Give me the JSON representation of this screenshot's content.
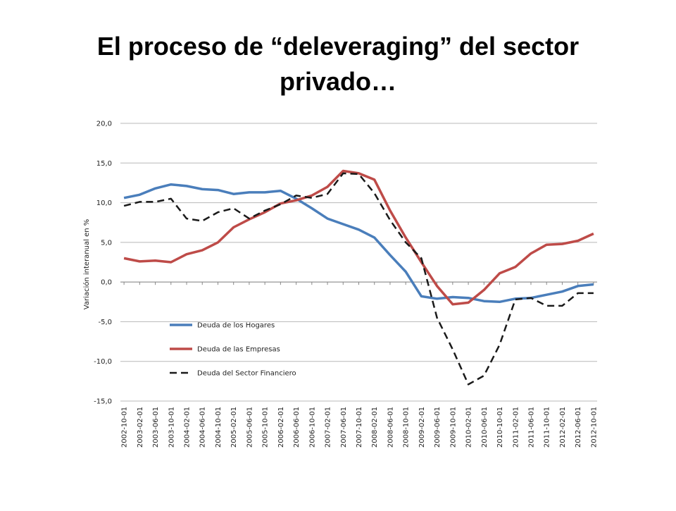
{
  "chart_data": {
    "type": "line",
    "title": "El proceso de “deleveraging” del sector privado…",
    "y_label": "Variación interanual en %",
    "categories": [
      "2002-10-01",
      "2003-02-01",
      "2003-06-01",
      "2003-10-01",
      "2004-02-01",
      "2004-06-01",
      "2004-10-01",
      "2005-02-01",
      "2005-06-01",
      "2005-10-01",
      "2006-02-01",
      "2006-06-01",
      "2006-10-01",
      "2007-02-01",
      "2007-06-01",
      "2007-10-01",
      "2008-02-01",
      "2008-06-01",
      "2008-10-01",
      "2009-02-01",
      "2009-06-01",
      "2009-10-01",
      "2010-02-01",
      "2010-06-01",
      "2010-10-01",
      "2011-02-01",
      "2011-06-01",
      "2011-10-01",
      "2012-02-01",
      "2012-06-01",
      "2012-10-01"
    ],
    "series": [
      {
        "name": "Deuda de los Hogares",
        "color": "#4a7ebb",
        "dash": false,
        "values": [
          10.6,
          11.0,
          11.8,
          12.3,
          12.1,
          11.7,
          11.6,
          11.1,
          11.3,
          11.3,
          11.5,
          10.5,
          9.3,
          8.0,
          7.3,
          6.6,
          5.6,
          3.4,
          1.3,
          -1.8,
          -2.1,
          -1.9,
          -2.0,
          -2.4,
          -2.5,
          -2.1,
          -2.0,
          -1.6,
          -1.2,
          -0.5,
          -0.3
        ]
      },
      {
        "name": "Deuda de las Empresas",
        "color": "#be4b48",
        "dash": false,
        "values": [
          3.0,
          2.6,
          2.7,
          2.5,
          3.5,
          4.0,
          5.0,
          6.9,
          7.9,
          8.8,
          9.9,
          10.3,
          10.9,
          12.0,
          14.0,
          13.7,
          12.9,
          9.0,
          5.6,
          2.5,
          -0.5,
          -2.8,
          -2.6,
          -1.0,
          1.1,
          1.9,
          3.6,
          4.7,
          4.8,
          5.2,
          6.1
        ]
      },
      {
        "name": "Deuda del Sector Financiero",
        "color": "#1a1a1a",
        "dash": true,
        "values": [
          9.6,
          10.1,
          10.1,
          10.5,
          8.0,
          7.7,
          8.8,
          9.3,
          8.0,
          9.0,
          9.8,
          10.9,
          10.6,
          11.1,
          13.7,
          13.6,
          11.2,
          7.8,
          5.0,
          3.0,
          -4.5,
          -8.5,
          -12.9,
          -11.8,
          -7.9,
          -2.2,
          -2.0,
          -3.0,
          -3.0,
          -1.4,
          -1.4
        ]
      }
    ],
    "ylim": [
      -15,
      20
    ],
    "yticks": [
      {
        "value": -15,
        "label": "-15,0"
      },
      {
        "value": -10,
        "label": "-10,0"
      },
      {
        "value": -5,
        "label": "-5,0"
      },
      {
        "value": 0,
        "label": "0,0"
      },
      {
        "value": 5,
        "label": "5,0"
      },
      {
        "value": 10,
        "label": "10,0"
      },
      {
        "value": 15,
        "label": "15,0"
      },
      {
        "value": 20,
        "label": "20,0"
      }
    ],
    "grid": true,
    "legend": "lower left"
  }
}
